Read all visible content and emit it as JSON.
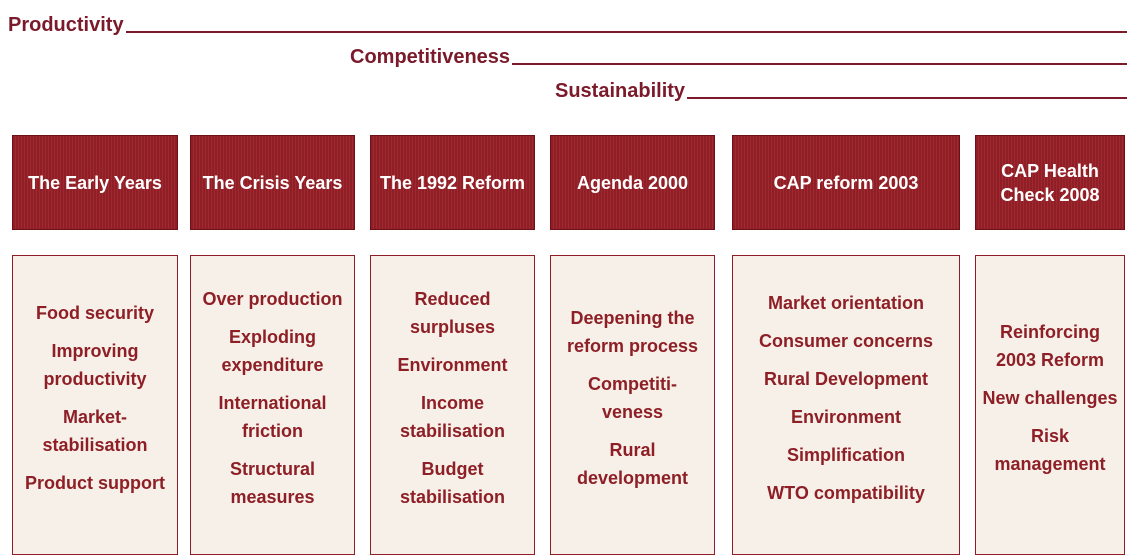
{
  "themes": [
    "Productivity",
    "Competitiveness",
    "Sustainability"
  ],
  "columns": [
    {
      "title": "The Early Years",
      "items": [
        "Food security",
        "Improving productivity",
        "Market-stabilisation",
        "Product support"
      ]
    },
    {
      "title": "The Crisis Years",
      "items": [
        "Over production",
        "Exploding expenditure",
        "International friction",
        "Structural measures"
      ]
    },
    {
      "title": "The 1992 Reform",
      "items": [
        "Reduced surpluses",
        "Environment",
        "Income stabilisation",
        "Budget stabilisation"
      ]
    },
    {
      "title": "Agenda 2000",
      "items": [
        "Deepening the reform process",
        "Competiti-veness",
        "Rural development"
      ]
    },
    {
      "title": "CAP reform 2003",
      "items": [
        "Market orientation",
        "Consumer concerns",
        "Rural Development",
        "Environment",
        "Simplification",
        "WTO compatibility"
      ]
    },
    {
      "title": "CAP Health Check 2008",
      "items": [
        "Reinforcing 2003 Reform",
        "New challenges",
        "Risk management"
      ]
    }
  ]
}
